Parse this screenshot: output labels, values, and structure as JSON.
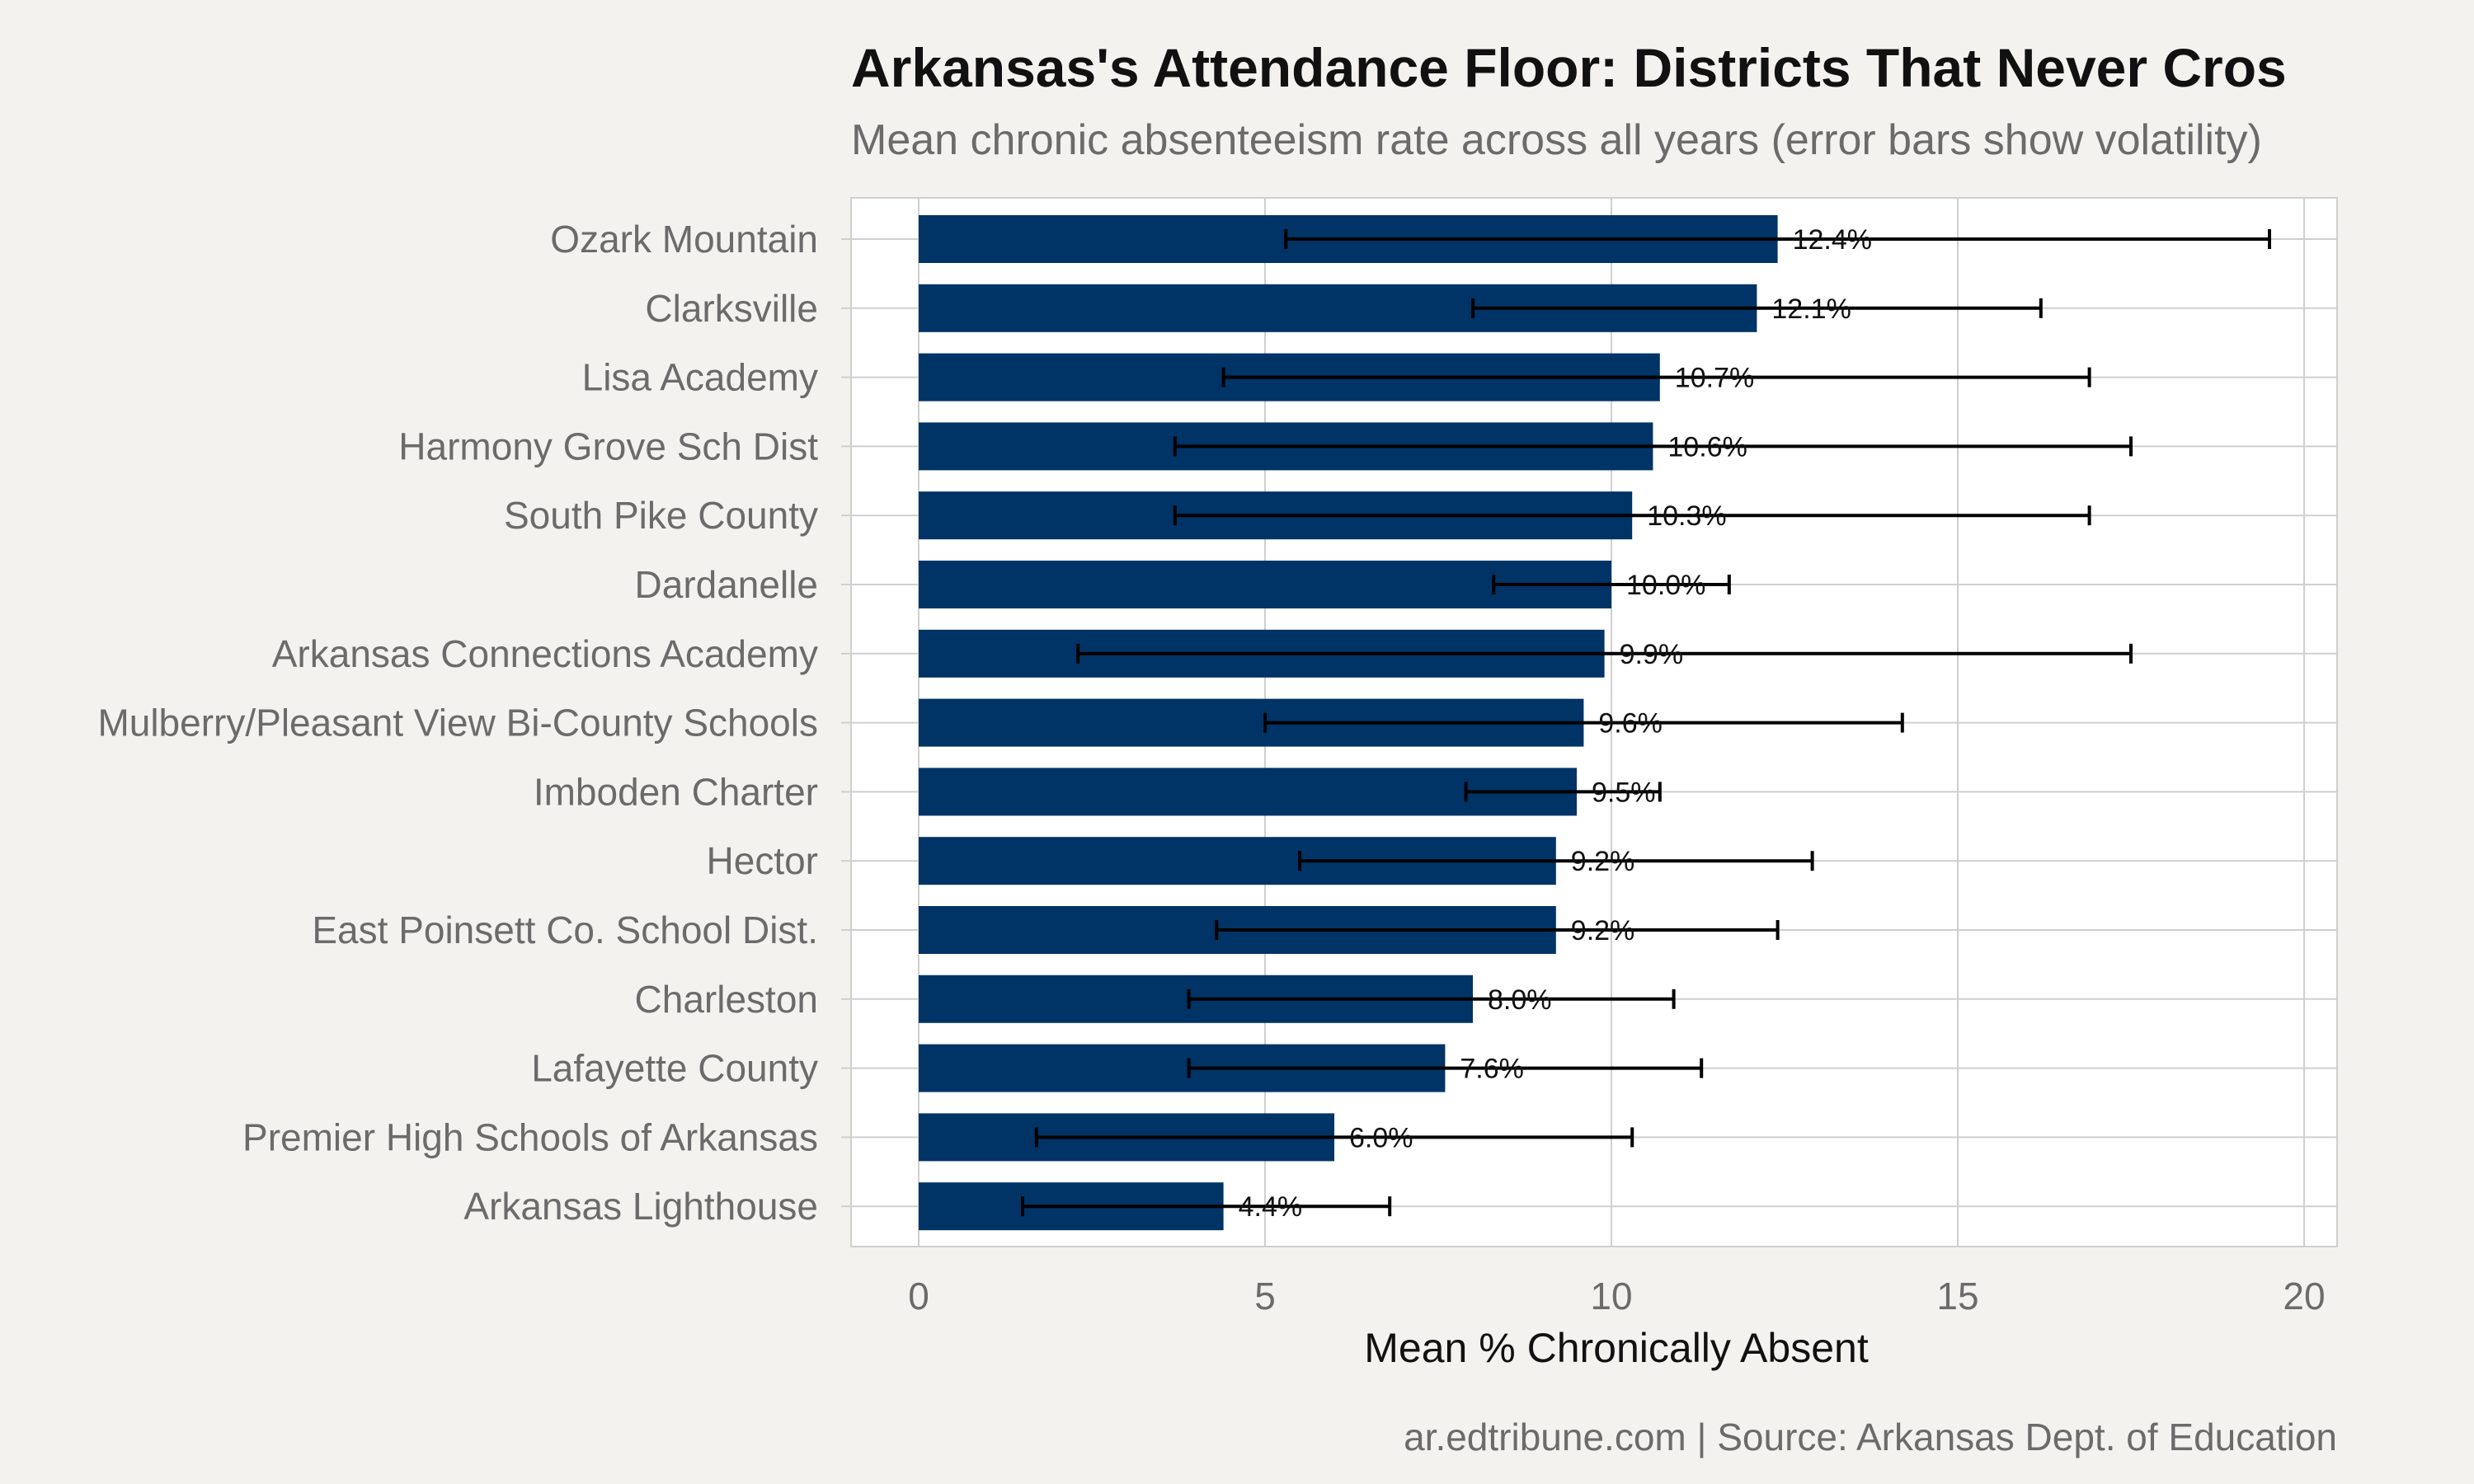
{
  "title": "Arkansas's Attendance Floor: Districts That Never Cros",
  "subtitle": "Mean chronic absenteeism rate across all years (error bars show volatility)",
  "caption": "ar.edtribune.com | Source: Arkansas Dept. of Education",
  "colors": {
    "background": "#f4f2ee",
    "panel": "#ffffff",
    "bar": "#003366",
    "error_bar": "#000000",
    "grid": "#cfcfcf",
    "axis_text": "#6b6b6b"
  },
  "chart_data": {
    "type": "bar",
    "orientation": "horizontal",
    "xlabel": "Mean % Chronically Absent",
    "ylabel": "",
    "xlim": [
      0,
      20
    ],
    "x_ticks": [
      0,
      5,
      10,
      15,
      20
    ],
    "grid": true,
    "categories": [
      "Ozark Mountain",
      "Clarksville",
      "Lisa Academy",
      "Harmony Grove Sch Dist",
      "South Pike County",
      "Dardanelle",
      "Arkansas Connections Academy",
      "Mulberry/Pleasant View Bi-County Schools",
      "Imboden Charter",
      "Hector",
      "East Poinsett Co. School Dist.",
      "Charleston",
      "Lafayette County",
      "Premier High Schools of Arkansas",
      "Arkansas Lighthouse"
    ],
    "values": [
      12.4,
      12.1,
      10.7,
      10.6,
      10.3,
      10.0,
      9.9,
      9.6,
      9.5,
      9.2,
      9.2,
      8.0,
      7.6,
      6.0,
      4.4
    ],
    "value_labels": [
      "12.4%",
      "12.1%",
      "10.7%",
      "10.6%",
      "10.3%",
      "10.0%",
      "9.9%",
      "9.6%",
      "9.5%",
      "9.2%",
      "9.2%",
      "8.0%",
      "7.6%",
      "6.0%",
      "4.4%"
    ],
    "error_low": [
      5.3,
      8.0,
      4.4,
      3.7,
      3.7,
      8.3,
      2.3,
      5.0,
      7.9,
      5.5,
      4.3,
      3.9,
      3.9,
      1.7,
      1.5
    ],
    "error_high": [
      19.5,
      16.2,
      16.9,
      17.5,
      16.9,
      11.7,
      17.5,
      14.2,
      10.7,
      12.9,
      12.4,
      10.9,
      11.3,
      10.3,
      6.8
    ]
  }
}
